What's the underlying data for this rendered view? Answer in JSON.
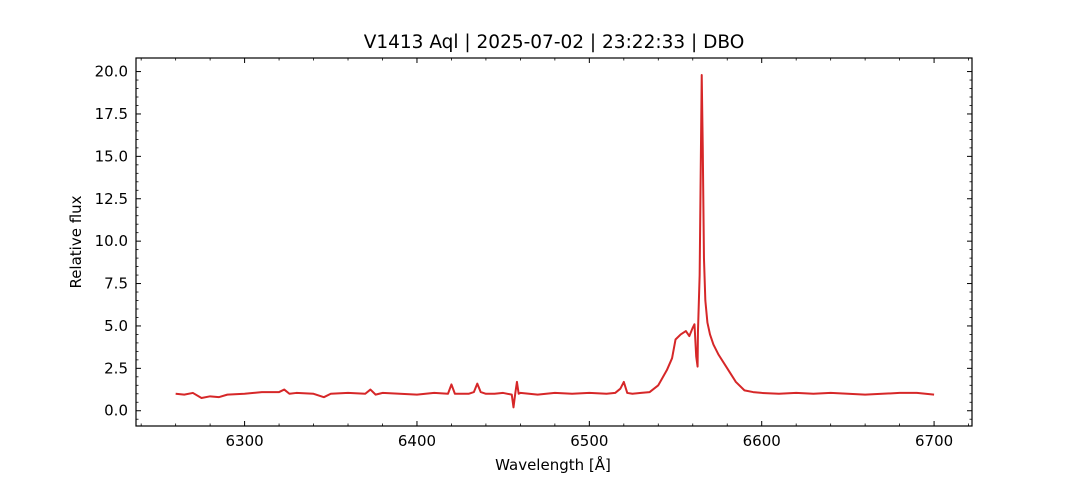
{
  "chart_data": {
    "type": "line",
    "title": "V1413 Aql | 2025-07-02 | 23:22:33 | DBO",
    "xlabel": "Wavelength [Å]",
    "ylabel": "Relative flux",
    "xlim": [
      6237,
      6722
    ],
    "ylim": [
      -0.9,
      20.8
    ],
    "xticks": [
      6300,
      6400,
      6500,
      6600,
      6700
    ],
    "xtick_labels": [
      "6300",
      "6400",
      "6500",
      "6600",
      "6700"
    ],
    "yticks": [
      0.0,
      2.5,
      5.0,
      7.5,
      10.0,
      12.5,
      15.0,
      17.5,
      20.0
    ],
    "ytick_labels": [
      "0.0",
      "2.5",
      "5.0",
      "7.5",
      "10.0",
      "12.5",
      "15.0",
      "17.5",
      "20.0"
    ],
    "grid": false,
    "series": [
      {
        "color": "#d62728",
        "x": [
          6260,
          6265,
          6270,
          6275,
          6280,
          6285,
          6290,
          6300,
          6310,
          6320,
          6323,
          6326,
          6330,
          6340,
          6346,
          6350,
          6360,
          6370,
          6373,
          6376,
          6380,
          6390,
          6400,
          6410,
          6418,
          6420,
          6422,
          6425,
          6430,
          6433,
          6435,
          6437,
          6440,
          6445,
          6450,
          6455,
          6456,
          6457,
          6458,
          6459,
          6460,
          6465,
          6470,
          6480,
          6490,
          6500,
          6510,
          6515,
          6518,
          6520,
          6522,
          6525,
          6530,
          6535,
          6540,
          6545,
          6548,
          6550,
          6553,
          6556,
          6558,
          6560,
          6561,
          6562,
          6562.8,
          6563,
          6564,
          6564.6,
          6565.2,
          6565.8,
          6566.5,
          6567.3,
          6568.5,
          6570,
          6572,
          6575,
          6580,
          6585,
          6590,
          6595,
          6600,
          6610,
          6620,
          6630,
          6640,
          6650,
          6660,
          6670,
          6680,
          6690,
          6700
        ],
        "y": [
          1.0,
          0.95,
          1.05,
          0.75,
          0.85,
          0.8,
          0.95,
          1.0,
          1.1,
          1.1,
          1.25,
          1.0,
          1.05,
          1.0,
          0.8,
          1.0,
          1.05,
          1.0,
          1.25,
          0.95,
          1.05,
          1.0,
          0.95,
          1.05,
          1.0,
          1.55,
          1.0,
          1.0,
          1.0,
          1.1,
          1.6,
          1.1,
          1.0,
          1.0,
          1.05,
          0.95,
          0.2,
          1.0,
          1.7,
          1.0,
          1.05,
          1.0,
          0.95,
          1.05,
          1.0,
          1.05,
          1.0,
          1.05,
          1.3,
          1.7,
          1.05,
          1.0,
          1.05,
          1.1,
          1.5,
          2.4,
          3.1,
          4.2,
          4.5,
          4.7,
          4.4,
          4.9,
          5.1,
          3.2,
          2.6,
          4.6,
          8.0,
          14.0,
          19.8,
          15.5,
          9.0,
          6.5,
          5.2,
          4.5,
          3.9,
          3.3,
          2.5,
          1.7,
          1.2,
          1.1,
          1.05,
          1.0,
          1.05,
          1.0,
          1.05,
          1.0,
          0.95,
          1.0,
          1.05,
          1.05,
          0.95
        ]
      }
    ]
  }
}
